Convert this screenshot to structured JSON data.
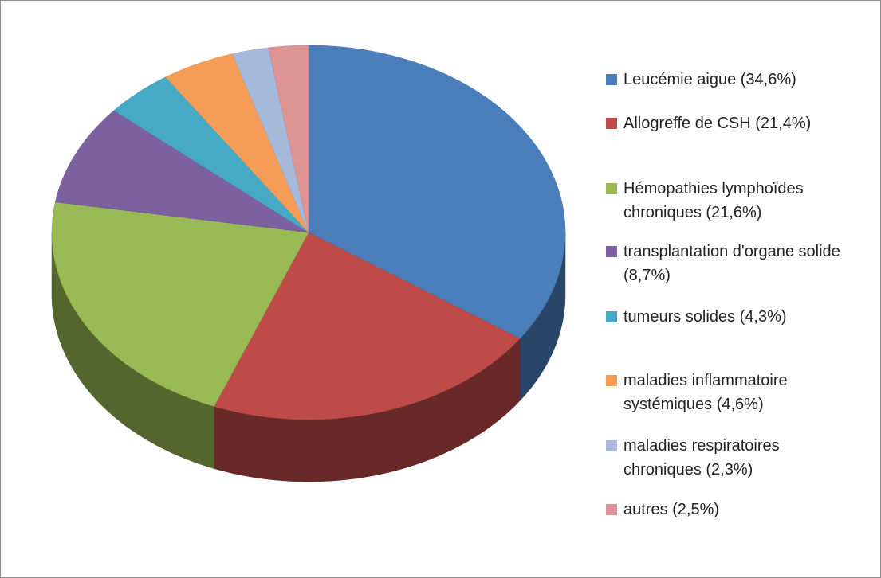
{
  "chart_data": {
    "type": "pie3d",
    "categories": [
      "Leucémie aigue (34,6%)",
      "Allogreffe de CSH (21,4%)",
      "Hémopathies lymphoïdes chroniques (21,6%)",
      "transplantation d'organe solide (8,7%)",
      "tumeurs solides (4,3%)",
      "maladies inflammatoire systémiques (4,6%)",
      "maladies respiratoires chroniques (2,3%)",
      "autres (2,5%)"
    ],
    "values": [
      34.6,
      21.4,
      21.6,
      8.7,
      4.3,
      4.6,
      2.3,
      2.5
    ],
    "colors": [
      "#4a7ebb",
      "#be4b48",
      "#98b954",
      "#7d60a0",
      "#46aac5",
      "#f59d56",
      "#a5b9db",
      "#dc9593"
    ],
    "legend": "right"
  }
}
